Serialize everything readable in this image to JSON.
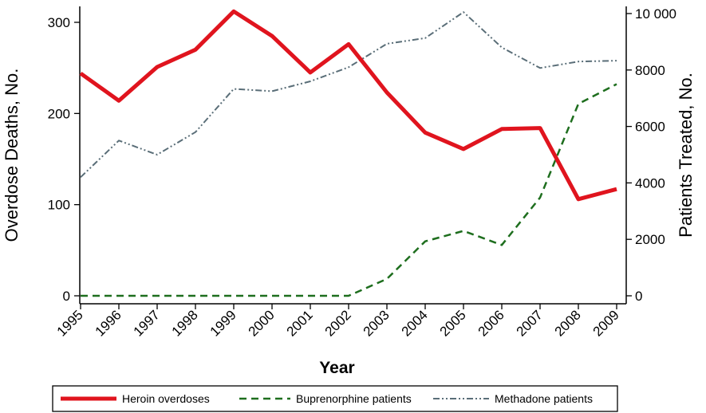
{
  "chart_data": {
    "type": "line",
    "x": [
      1995,
      1996,
      1997,
      1998,
      1999,
      2000,
      2001,
      2002,
      2003,
      2004,
      2005,
      2006,
      2007,
      2008,
      2009
    ],
    "xlabel": "Year",
    "ylabel_left": "Overdose Deaths, No.",
    "ylabel_right": "Patients Treated, No.",
    "ylim_left": [
      0,
      315
    ],
    "ylim_right": [
      0,
      10300
    ],
    "yticks_left": [
      0,
      100,
      200,
      300
    ],
    "yticks_right": [
      0,
      2000,
      4000,
      6000,
      8000,
      10000
    ],
    "yticklabels_right": [
      "0",
      "2000",
      "4000",
      "6000",
      "8000",
      "10 000"
    ],
    "grid": false,
    "legend_position": "bottom",
    "series": [
      {
        "name": "Heroin overdoses",
        "axis": "left",
        "color": "#e0141e",
        "style": "solid",
        "values": [
          244,
          214,
          251,
          270,
          312,
          285,
          245,
          276,
          223,
          179,
          161,
          183,
          184,
          106,
          117
        ]
      },
      {
        "name": "Buprenorphine patients",
        "axis": "right",
        "color": "#1e6e1e",
        "style": "dashed",
        "values": [
          0,
          0,
          0,
          0,
          0,
          0,
          0,
          0,
          600,
          1930,
          2300,
          1800,
          3480,
          6800,
          7500
        ]
      },
      {
        "name": "Methadone patients",
        "axis": "right",
        "color": "#5a6e78",
        "style": "dash-dot-dot",
        "values": [
          4200,
          5500,
          5000,
          5800,
          7330,
          7250,
          7600,
          8100,
          8930,
          9130,
          10050,
          8800,
          8070,
          8300,
          8330
        ]
      }
    ]
  }
}
